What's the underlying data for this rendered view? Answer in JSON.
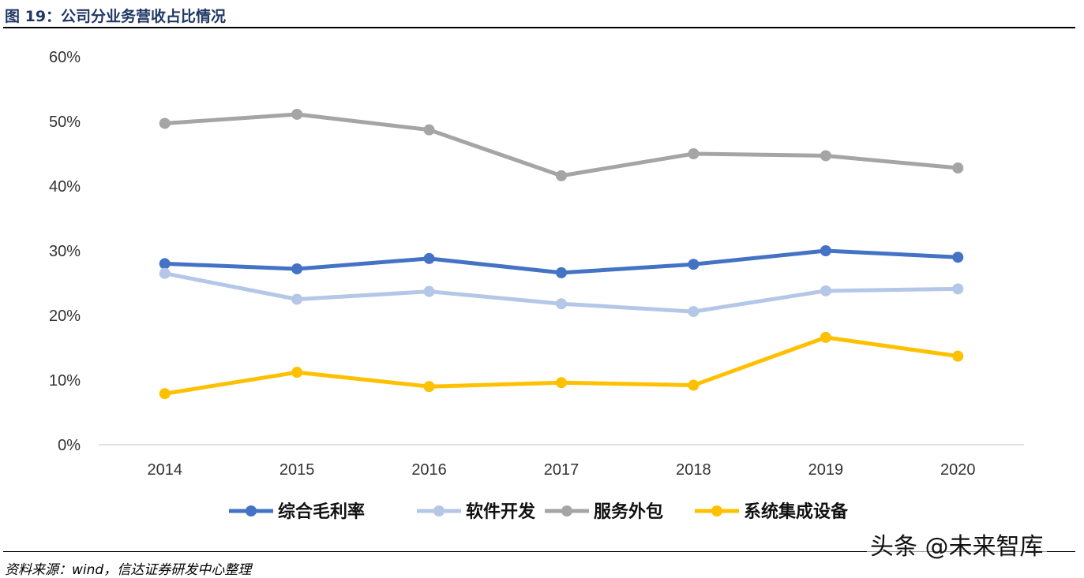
{
  "figure": {
    "title": "图 19：公司分业务营收占比情况",
    "source": "资料来源：wind，信达证券研发中心整理",
    "watermark": "头条 @未来智库"
  },
  "chart_data": {
    "type": "line",
    "title": "",
    "xlabel": "",
    "ylabel": "",
    "x": [
      "2014",
      "2015",
      "2016",
      "2017",
      "2018",
      "2019",
      "2020"
    ],
    "yticks": [
      "0%",
      "10%",
      "20%",
      "30%",
      "40%",
      "50%",
      "60%"
    ],
    "ylim": [
      0,
      60
    ],
    "grid": false,
    "legend_position": "bottom",
    "series": [
      {
        "name": "综合毛利率",
        "color": "#4472C4",
        "values": [
          28.0,
          27.2,
          28.8,
          26.6,
          27.9,
          30.0,
          29.0
        ]
      },
      {
        "name": "软件开发",
        "color": "#B4C7E7",
        "values": [
          26.5,
          22.5,
          23.7,
          21.8,
          20.6,
          23.8,
          24.1
        ]
      },
      {
        "name": "服务外包",
        "color": "#A5A5A5",
        "values": [
          49.7,
          51.1,
          48.7,
          41.6,
          45.0,
          44.7,
          42.8
        ]
      },
      {
        "name": "系统集成设备",
        "color": "#FFC000",
        "values": [
          7.9,
          11.2,
          9.0,
          9.6,
          9.2,
          16.6,
          13.7
        ]
      }
    ]
  }
}
